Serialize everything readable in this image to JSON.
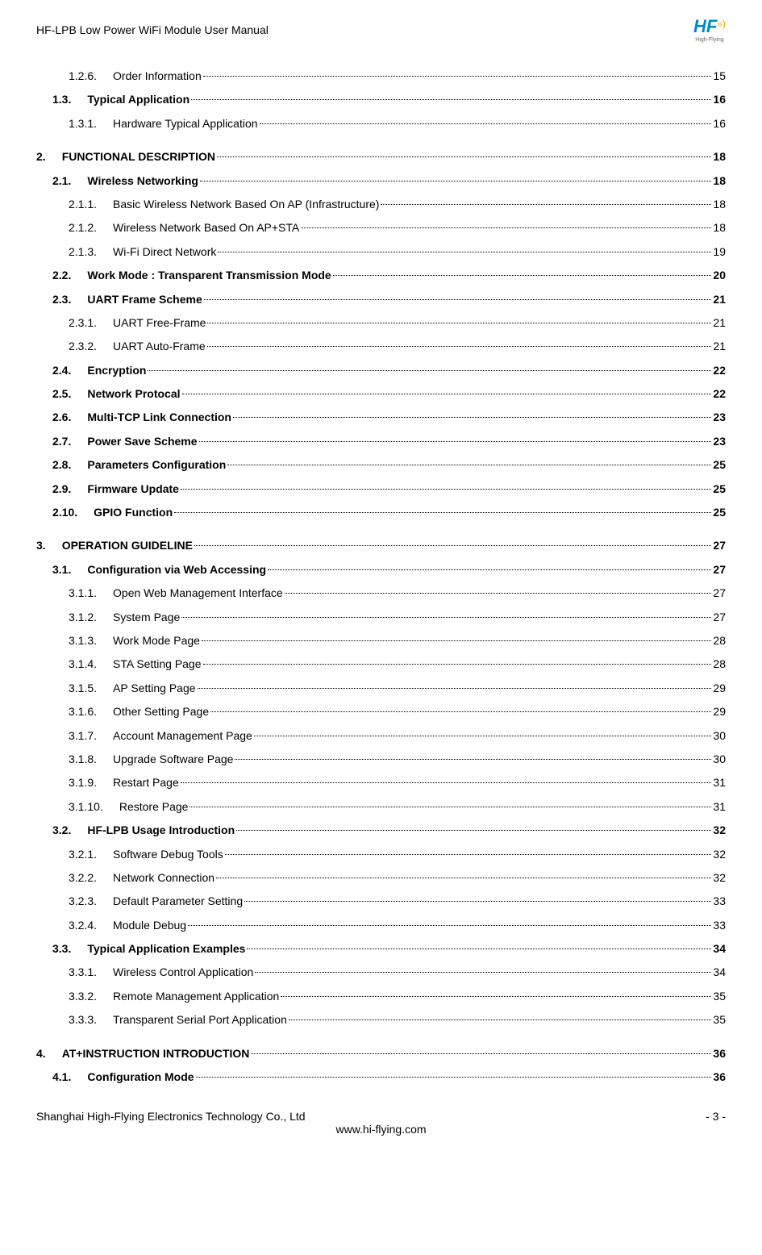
{
  "header": {
    "title": "HF-LPB Low Power WiFi Module User Manual",
    "logo_main": "HF",
    "logo_sup": "»)",
    "logo_sub": "High-Flying"
  },
  "toc": [
    {
      "level": 2,
      "number": "1.2.6.",
      "text": "Order Information",
      "page": "15"
    },
    {
      "level": 1,
      "number": "1.3.",
      "text": "Typical Application",
      "page": "16"
    },
    {
      "level": 2,
      "number": "1.3.1.",
      "text": "Hardware Typical Application",
      "page": "16"
    },
    {
      "level": 0,
      "number": "2.",
      "text": "FUNCTIONAL DESCRIPTION",
      "page": "18"
    },
    {
      "level": 1,
      "number": "2.1.",
      "text": "Wireless Networking",
      "page": "18"
    },
    {
      "level": 2,
      "number": "2.1.1.",
      "text": "Basic Wireless Network Based On AP (Infrastructure)",
      "page": "18"
    },
    {
      "level": 2,
      "number": "2.1.2.",
      "text": "Wireless Network Based On AP+STA",
      "page": "18"
    },
    {
      "level": 2,
      "number": "2.1.3.",
      "text": "Wi-Fi Direct Network",
      "page": "19"
    },
    {
      "level": 1,
      "number": "2.2.",
      "text": "Work Mode : Transparent Transmission Mode",
      "page": "20"
    },
    {
      "level": 1,
      "number": "2.3.",
      "text": "UART Frame Scheme",
      "page": "21"
    },
    {
      "level": 2,
      "number": "2.3.1.",
      "text": "UART Free-Frame",
      "page": "21"
    },
    {
      "level": 2,
      "number": "2.3.2.",
      "text": "UART Auto-Frame",
      "page": "21"
    },
    {
      "level": 1,
      "number": "2.4.",
      "text": "Encryption",
      "page": "22"
    },
    {
      "level": 1,
      "number": "2.5.",
      "text": "Network Protocal",
      "page": "22"
    },
    {
      "level": 1,
      "number": "2.6.",
      "text": "Multi-TCP Link Connection",
      "page": "23"
    },
    {
      "level": 1,
      "number": "2.7.",
      "text": "Power Save Scheme",
      "page": "23"
    },
    {
      "level": 1,
      "number": "2.8.",
      "text": "Parameters Configuration",
      "page": "25"
    },
    {
      "level": 1,
      "number": "2.9.",
      "text": "Firmware Update",
      "page": "25"
    },
    {
      "level": 1,
      "number": "2.10.",
      "text": "GPIO Function",
      "page": "25"
    },
    {
      "level": 0,
      "number": "3.",
      "text": "OPERATION GUIDELINE",
      "page": "27"
    },
    {
      "level": 1,
      "number": "3.1.",
      "text": "Configuration via Web Accessing",
      "page": "27"
    },
    {
      "level": 2,
      "number": "3.1.1.",
      "text": "Open Web Management Interface",
      "page": "27"
    },
    {
      "level": 2,
      "number": "3.1.2.",
      "text": "System Page",
      "page": "27"
    },
    {
      "level": 2,
      "number": "3.1.3.",
      "text": "Work Mode Page",
      "page": "28"
    },
    {
      "level": 2,
      "number": "3.1.4.",
      "text": "STA Setting Page",
      "page": "28"
    },
    {
      "level": 2,
      "number": "3.1.5.",
      "text": "AP Setting Page",
      "page": "29"
    },
    {
      "level": 2,
      "number": "3.1.6.",
      "text": "Other Setting Page",
      "page": "29"
    },
    {
      "level": 2,
      "number": "3.1.7.",
      "text": "Account Management Page",
      "page": "30"
    },
    {
      "level": 2,
      "number": "3.1.8.",
      "text": "Upgrade Software Page",
      "page": "30"
    },
    {
      "level": 2,
      "number": "3.1.9.",
      "text": "Restart Page",
      "page": "31"
    },
    {
      "level": 2,
      "number": "3.1.10.",
      "text": "Restore Page",
      "page": "31"
    },
    {
      "level": 1,
      "number": "3.2.",
      "text": "HF-LPB Usage Introduction",
      "page": "32"
    },
    {
      "level": 2,
      "number": "3.2.1.",
      "text": "Software Debug Tools",
      "page": "32"
    },
    {
      "level": 2,
      "number": "3.2.2.",
      "text": "Network Connection",
      "page": "32"
    },
    {
      "level": 2,
      "number": "3.2.3.",
      "text": "Default Parameter Setting",
      "page": "33"
    },
    {
      "level": 2,
      "number": "3.2.4.",
      "text": "Module Debug",
      "page": "33"
    },
    {
      "level": 1,
      "number": "3.3.",
      "text": "Typical Application Examples",
      "page": "34"
    },
    {
      "level": 2,
      "number": "3.3.1.",
      "text": "Wireless Control Application",
      "page": "34"
    },
    {
      "level": 2,
      "number": "3.3.2.",
      "text": "Remote Management Application",
      "page": "35"
    },
    {
      "level": 2,
      "number": "3.3.3.",
      "text": "Transparent Serial Port Application",
      "page": "35"
    },
    {
      "level": 0,
      "number": "4.",
      "text": "AT+INSTRUCTION INTRODUCTION",
      "page": "36"
    },
    {
      "level": 1,
      "number": "4.1.",
      "text": "Configuration Mode",
      "page": "36"
    }
  ],
  "footer": {
    "company": "Shanghai High-Flying Electronics Technology Co., Ltd",
    "website": "www.hi-flying.com",
    "page": "- 3 -"
  }
}
